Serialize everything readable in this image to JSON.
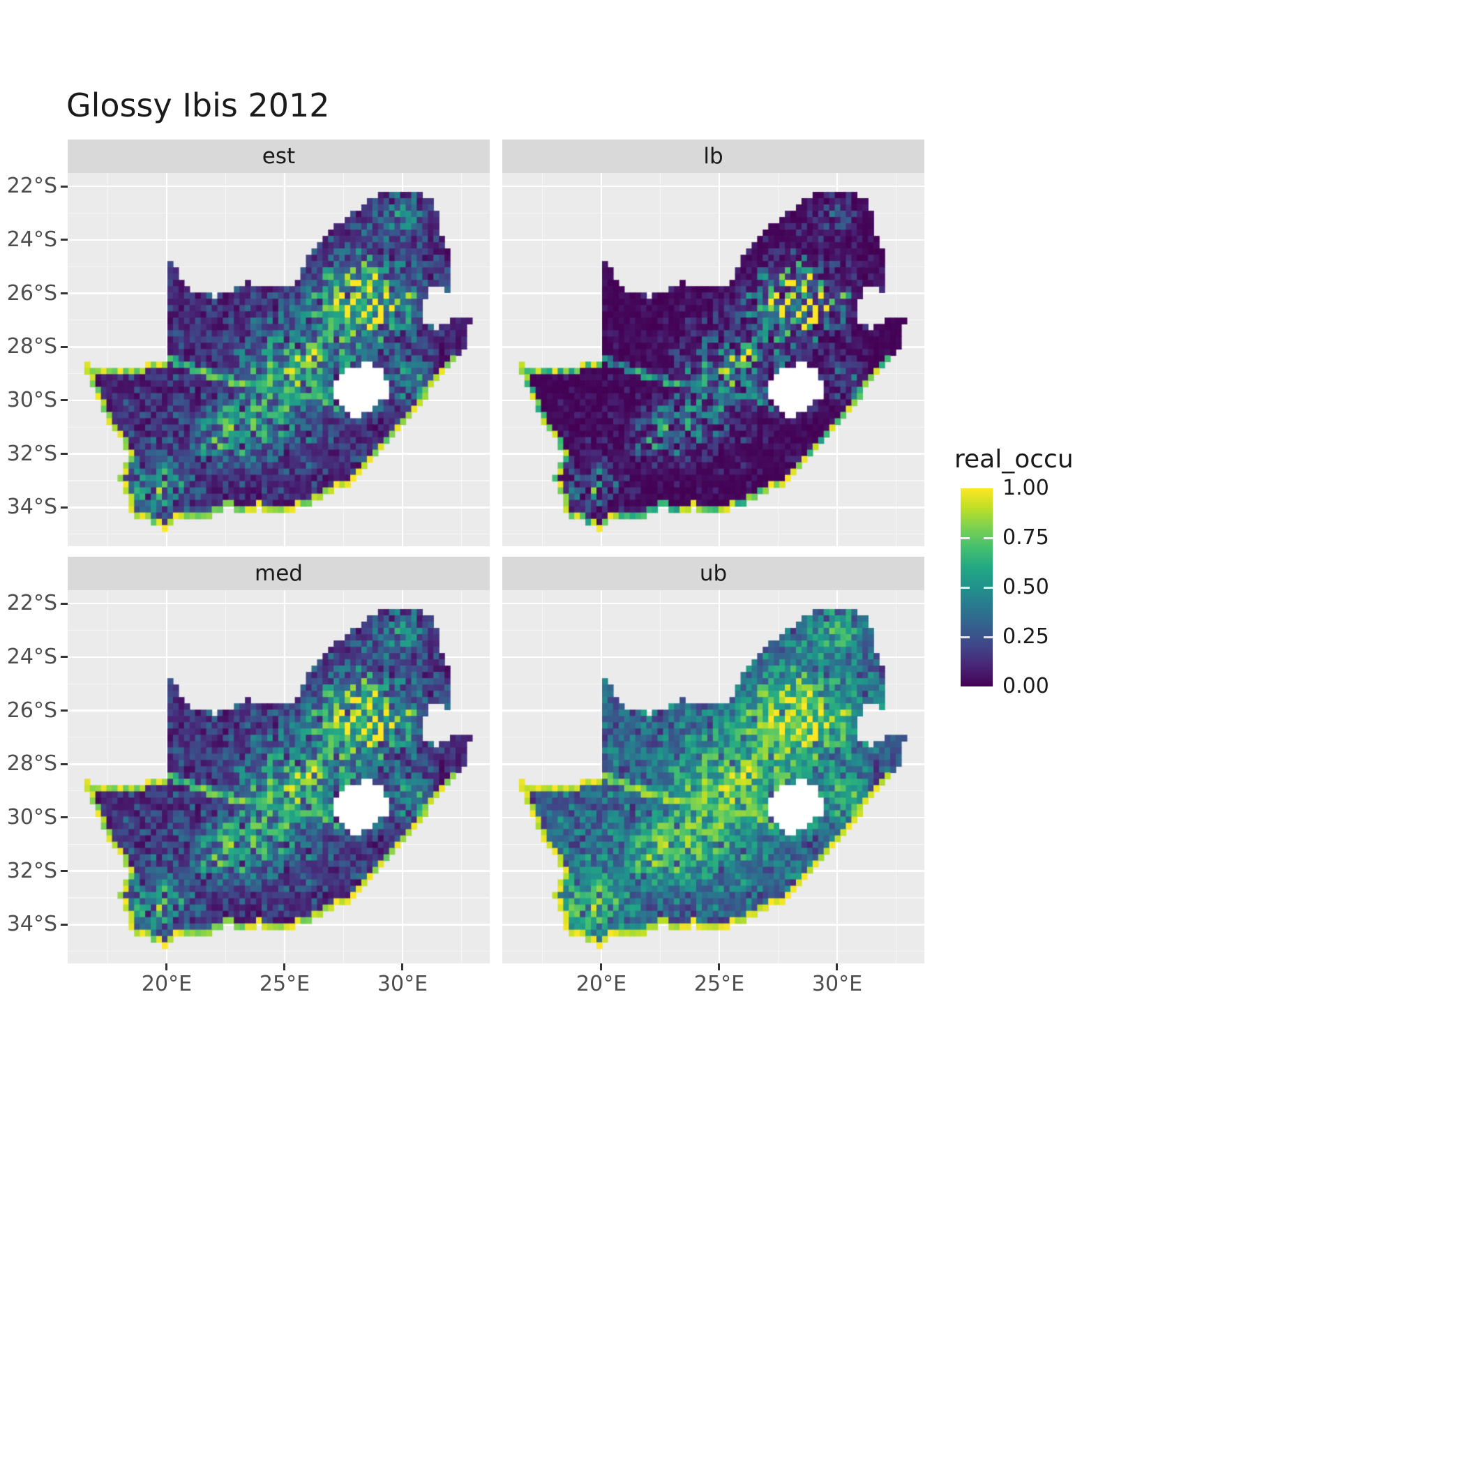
{
  "title": "Glossy Ibis 2012",
  "facets": [
    {
      "label": "est"
    },
    {
      "label": "lb"
    },
    {
      "label": "med"
    },
    {
      "label": "ub"
    }
  ],
  "axes": {
    "y_ticks": [
      "22°S",
      "24°S",
      "26°S",
      "28°S",
      "30°S",
      "32°S",
      "34°S"
    ],
    "y_values": [
      -22,
      -24,
      -26,
      -28,
      -30,
      -32,
      -34
    ],
    "x_ticks": [
      "20°E",
      "25°E",
      "30°E"
    ],
    "x_values": [
      20,
      25,
      30
    ]
  },
  "legend": {
    "title": "real_occu",
    "labels": [
      "1.00",
      "0.75",
      "0.50",
      "0.25",
      "0.00"
    ],
    "values": [
      1.0,
      0.75,
      0.5,
      0.25,
      0.0
    ]
  },
  "colors": {
    "panel_bg": "#ebebeb",
    "strip_bg": "#d9d9d9",
    "grid": "#ffffff",
    "axis_text": "#4d4d4d",
    "text": "#1a1a1a",
    "hole_fill": "#ffffff",
    "viridis": [
      "#440154",
      "#482475",
      "#414487",
      "#355f8d",
      "#2a788e",
      "#21918c",
      "#22a884",
      "#44bf70",
      "#7ad151",
      "#bddf26",
      "#fde725"
    ]
  },
  "chart_data": {
    "type": "heatmap",
    "title": "Glossy Ibis 2012",
    "variable": "real_occu",
    "palette": "viridis",
    "value_range": [
      0,
      1
    ],
    "legend_breaks": [
      0,
      0.25,
      0.5,
      0.75,
      1
    ],
    "facets": [
      "est",
      "lb",
      "med",
      "ub"
    ],
    "facet_layout": "2x2",
    "region": "South Africa quarter-degree occupancy raster; Lesotho shown as white hole; high occupancy band in the northeast interior (around 25-30E, 25-28S), moderate values through the central plateau and along the Orange/Vaal rivers, bright cells rimming the south and west coasts; lb darkest, ub brightest",
    "x_range_lon": [
      15.8,
      33.7
    ],
    "y_range_lat": [
      -35.45,
      -21.5
    ],
    "x_ticks_lon": [
      20,
      25,
      30
    ],
    "y_ticks_lat": [
      -22,
      -24,
      -26,
      -28,
      -30,
      -32,
      -34
    ],
    "cell_deg": 0.235,
    "facet_gamma": [
      1.0,
      1.9,
      0.9,
      0.52
    ],
    "hotspots": [
      [
        28.4,
        -26.3,
        2.0,
        1.4,
        0.95
      ],
      [
        25.6,
        -28.9,
        2.4,
        1.7,
        0.55
      ],
      [
        23.0,
        -31.2,
        2.3,
        1.2,
        0.42
      ],
      [
        19.6,
        -33.3,
        1.2,
        0.9,
        0.5
      ],
      [
        29.8,
        -23.1,
        1.1,
        0.8,
        0.3
      ],
      [
        30.5,
        -29.3,
        1.0,
        0.9,
        0.35
      ]
    ],
    "geometry": {
      "sa_outline": [
        [
          16.45,
          -28.6
        ],
        [
          17.35,
          -28.75
        ],
        [
          18.2,
          -28.85
        ],
        [
          19.0,
          -28.7
        ],
        [
          19.6,
          -28.5
        ],
        [
          19.98,
          -28.42
        ],
        [
          19.98,
          -24.77
        ],
        [
          20.35,
          -25.05
        ],
        [
          20.65,
          -25.45
        ],
        [
          20.9,
          -25.8
        ],
        [
          21.5,
          -26.05
        ],
        [
          22.1,
          -26.1
        ],
        [
          22.65,
          -25.95
        ],
        [
          23.3,
          -25.6
        ],
        [
          24.0,
          -25.65
        ],
        [
          24.75,
          -25.8
        ],
        [
          25.4,
          -25.7
        ],
        [
          25.9,
          -24.75
        ],
        [
          26.4,
          -24.3
        ],
        [
          26.9,
          -23.7
        ],
        [
          27.6,
          -23.2
        ],
        [
          28.3,
          -22.7
        ],
        [
          29.1,
          -22.2
        ],
        [
          29.7,
          -22.13
        ],
        [
          30.3,
          -22.3
        ],
        [
          31.3,
          -22.35
        ],
        [
          31.55,
          -23.5
        ],
        [
          31.9,
          -24.3
        ],
        [
          31.98,
          -25.5
        ],
        [
          31.9,
          -25.85
        ],
        [
          31.3,
          -25.72
        ],
        [
          30.95,
          -26.1
        ],
        [
          30.8,
          -26.6
        ],
        [
          30.95,
          -27.1
        ],
        [
          31.5,
          -27.3
        ],
        [
          32.1,
          -26.9
        ],
        [
          32.9,
          -26.86
        ],
        [
          32.55,
          -28.2
        ],
        [
          32.0,
          -28.8
        ],
        [
          31.3,
          -29.4
        ],
        [
          30.7,
          -30.2
        ],
        [
          30.0,
          -31.0
        ],
        [
          29.3,
          -31.65
        ],
        [
          28.6,
          -32.3
        ],
        [
          27.9,
          -33.05
        ],
        [
          27.1,
          -33.4
        ],
        [
          26.4,
          -33.75
        ],
        [
          25.65,
          -34.0
        ],
        [
          24.8,
          -34.2
        ],
        [
          24.0,
          -34.05
        ],
        [
          23.3,
          -34.1
        ],
        [
          22.55,
          -34.05
        ],
        [
          21.8,
          -34.35
        ],
        [
          21.0,
          -34.35
        ],
        [
          20.5,
          -34.45
        ],
        [
          20.0,
          -34.82
        ],
        [
          19.4,
          -34.6
        ],
        [
          18.85,
          -34.4
        ],
        [
          18.45,
          -34.1
        ],
        [
          18.35,
          -33.85
        ],
        [
          18.2,
          -33.35
        ],
        [
          17.95,
          -32.9
        ],
        [
          18.25,
          -32.55
        ],
        [
          18.3,
          -32.0
        ],
        [
          18.2,
          -31.55
        ],
        [
          17.7,
          -31.0
        ],
        [
          17.25,
          -30.4
        ],
        [
          16.95,
          -29.65
        ],
        [
          16.7,
          -29.15
        ]
      ],
      "lesotho_hole": [
        [
          27.05,
          -29.6
        ],
        [
          27.4,
          -29.05
        ],
        [
          27.95,
          -28.7
        ],
        [
          28.6,
          -28.6
        ],
        [
          29.15,
          -28.9
        ],
        [
          29.45,
          -29.35
        ],
        [
          29.3,
          -29.9
        ],
        [
          28.85,
          -30.25
        ],
        [
          28.2,
          -30.65
        ],
        [
          27.75,
          -30.55
        ],
        [
          27.35,
          -30.15
        ]
      ],
      "rivers": [
        [
          [
            16.5,
            -28.6
          ],
          [
            17.7,
            -28.72
          ],
          [
            18.9,
            -28.72
          ],
          [
            20.0,
            -28.45
          ],
          [
            21.0,
            -28.75
          ],
          [
            22.0,
            -29.1
          ],
          [
            23.2,
            -29.35
          ],
          [
            24.4,
            -29.6
          ],
          [
            25.4,
            -29.7
          ],
          [
            26.5,
            -29.9
          ],
          [
            27.1,
            -30.2
          ]
        ],
        [
          [
            23.9,
            -29.45
          ],
          [
            24.8,
            -29.05
          ],
          [
            25.7,
            -28.55
          ],
          [
            26.4,
            -27.9
          ],
          [
            26.9,
            -27.35
          ],
          [
            27.6,
            -26.9
          ]
        ]
      ]
    }
  }
}
